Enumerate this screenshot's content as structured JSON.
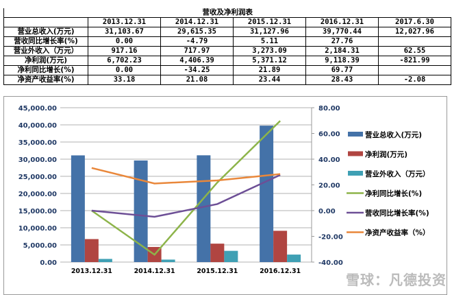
{
  "table": {
    "title": "营收及净利润表",
    "headers": [
      "",
      "2013.12.31",
      "2014.12.31",
      "2015.12.31",
      "2016.12.31",
      "2017.6.30"
    ],
    "rows": [
      [
        "营业总收入(万元)",
        "31,103.67",
        "29,615.35",
        "31,127.96",
        "39,770.44",
        "12,027.96"
      ],
      [
        "营收同比增长率(%)",
        "0.00",
        "-4.79",
        "5.11",
        "27.76",
        ""
      ],
      [
        "营业外收入（万元）",
        "917.16",
        "717.97",
        "3,273.09",
        "2,184.31",
        "62.55"
      ],
      [
        "净利润(万元)",
        "6,702.23",
        "4,406.39",
        "5,371.12",
        "9,118.39",
        "-821.99"
      ],
      [
        "净利同比增长(%)",
        "0.00",
        "-34.25",
        "21.89",
        "69.77",
        ""
      ],
      [
        "净资产收益率(%)",
        "33.18",
        "21.08",
        "23.44",
        "28.43",
        "-2.08"
      ]
    ]
  },
  "chart_data": {
    "type": "bar",
    "categories": [
      "2013.12.31",
      "2014.12.31",
      "2015.12.31",
      "2016.12.31"
    ],
    "ylim": [
      0,
      45000
    ],
    "y2lim": [
      -40,
      80
    ],
    "yticks": [
      "0.00",
      "5,000.00",
      "10,000.00",
      "15,000.00",
      "20,000.00",
      "25,000.00",
      "30,000.00",
      "35,000.00",
      "40,000.00",
      "45,000.00"
    ],
    "y2ticks": [
      "-40.00",
      "-20.00",
      "0.00",
      "20.00",
      "40.00",
      "60.00",
      "80.00"
    ],
    "grid": true,
    "legend": "right",
    "bars": [
      {
        "name": "营业总收入(万元)",
        "color": "#4472a8",
        "values": [
          31103.67,
          29615.35,
          31127.96,
          39770.44
        ]
      },
      {
        "name": "净利润(万元)",
        "color": "#b04541",
        "values": [
          6702.23,
          4406.39,
          5371.12,
          9118.39
        ]
      },
      {
        "name": "营业外收入（万元）",
        "color": "#3fa0b4",
        "values": [
          917.16,
          717.97,
          3273.09,
          2184.31
        ]
      }
    ],
    "lines": [
      {
        "name": "净利同比增长(%)",
        "color": "#8db44a",
        "values": [
          0,
          -34.25,
          21.89,
          69.77
        ]
      },
      {
        "name": "营收同比增长率(%)",
        "color": "#6d4f96",
        "values": [
          0,
          -4.79,
          5.11,
          27.76
        ]
      },
      {
        "name": "净资产收益率（%）",
        "color": "#e9873a",
        "values": [
          33.18,
          21.08,
          23.44,
          28.43
        ]
      }
    ]
  },
  "watermark": "雪球：凡德投资"
}
